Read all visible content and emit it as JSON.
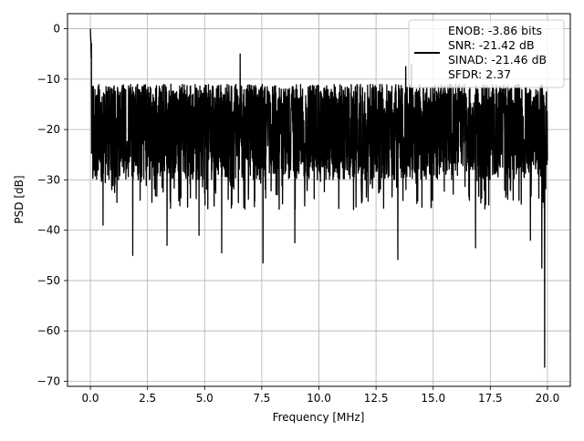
{
  "chart_data": {
    "type": "line",
    "title": "",
    "xlabel": "Frequency [MHz]",
    "ylabel": "PSD [dB]",
    "xlim": [
      -1.0,
      21.0
    ],
    "ylim": [
      -71.0,
      3.0
    ],
    "grid": true,
    "x_ticks": [
      0.0,
      2.5,
      5.0,
      7.5,
      10.0,
      12.5,
      15.0,
      17.5,
      20.0
    ],
    "x_tick_labels": [
      "0.0",
      "2.5",
      "5.0",
      "7.5",
      "10.0",
      "12.5",
      "15.0",
      "17.5",
      "20.0"
    ],
    "y_ticks": [
      0,
      -10,
      -20,
      -30,
      -40,
      -50,
      -60,
      -70
    ],
    "y_tick_labels": [
      "0",
      "−10",
      "−20",
      "−30",
      "−40",
      "−50",
      "−60",
      "−70"
    ],
    "legend": {
      "placement": "top-right",
      "entries": [
        "ENOB: -3.86 bits",
        "SNR: -21.42 dB",
        "SINAD: -21.46 dB",
        "SFDR: 2.37"
      ]
    },
    "series": [
      {
        "color": "#000000",
        "x_range": [
          0.0,
          20.0
        ],
        "y_range": [
          -67.2,
          0.0
        ],
        "description_values": {
          "peak_at_dc": 0.0,
          "typical_upper_envelope": -11.0,
          "typical_mean": -20.0,
          "typical_lower_envelope": -30.0,
          "notable_minima": [
            {
              "x": 0.55,
              "y": -39.0
            },
            {
              "x": 1.85,
              "y": -45.0
            },
            {
              "x": 3.35,
              "y": -43.0
            },
            {
              "x": 4.75,
              "y": -41.0
            },
            {
              "x": 5.75,
              "y": -44.5
            },
            {
              "x": 7.55,
              "y": -46.5
            },
            {
              "x": 8.95,
              "y": -42.5
            },
            {
              "x": 13.45,
              "y": -45.8
            },
            {
              "x": 16.85,
              "y": -43.5
            },
            {
              "x": 19.25,
              "y": -42.0
            },
            {
              "x": 19.75,
              "y": -47.5
            },
            {
              "x": 19.88,
              "y": -67.2
            }
          ],
          "notable_maxima": [
            {
              "x": 0.0,
              "y": 0.0
            },
            {
              "x": 6.55,
              "y": -5.0
            },
            {
              "x": 14.05,
              "y": -7.0
            },
            {
              "x": 13.8,
              "y": -7.5
            }
          ]
        }
      }
    ]
  }
}
